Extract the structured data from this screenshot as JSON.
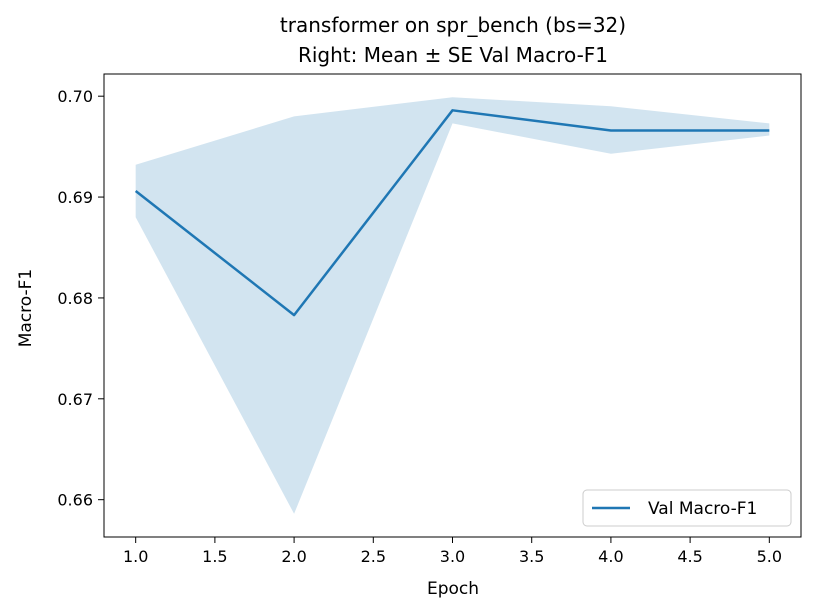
{
  "chart_data": {
    "type": "line",
    "title_line1": "transformer on spr_bench (bs=32)",
    "title_line2": "Right: Mean ± SE Val Macro-F1",
    "xlabel": "Epoch",
    "ylabel": "Macro-F1",
    "xlim": [
      0.8,
      5.2
    ],
    "ylim": [
      0.6563,
      0.7022
    ],
    "x_ticks": [
      1.0,
      1.5,
      2.0,
      2.5,
      3.0,
      3.5,
      4.0,
      4.5,
      5.0
    ],
    "x_tick_labels": [
      "1.0",
      "1.5",
      "2.0",
      "2.5",
      "3.0",
      "3.5",
      "4.0",
      "4.5",
      "5.0"
    ],
    "y_ticks": [
      0.66,
      0.67,
      0.68,
      0.69,
      0.7
    ],
    "y_tick_labels": [
      "0.66",
      "0.67",
      "0.68",
      "0.69",
      "0.70"
    ],
    "legend_position": "lower-right",
    "series": [
      {
        "name": "Val Macro-F1",
        "color": "#1f77b4",
        "x": [
          1,
          2,
          3,
          4,
          5
        ],
        "y": [
          0.6906,
          0.6783,
          0.6986,
          0.6966,
          0.6966
        ],
        "se_lower": [
          0.688,
          0.6586,
          0.6973,
          0.6943,
          0.6961
        ],
        "se_upper": [
          0.6932,
          0.698,
          0.6999,
          0.699,
          0.6973
        ]
      }
    ]
  }
}
